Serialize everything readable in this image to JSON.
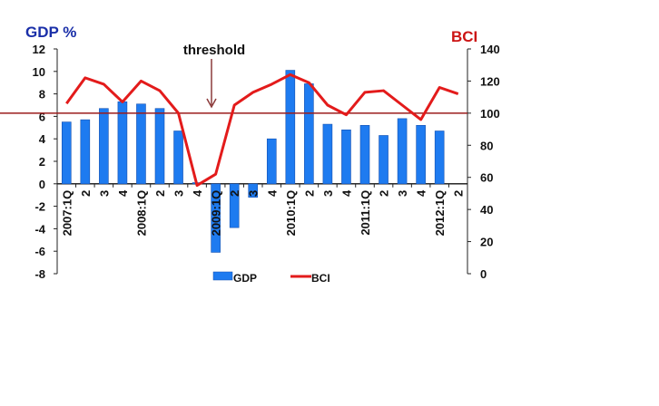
{
  "chart_data": {
    "type": "bar+line",
    "title": "",
    "left_axis": {
      "label": "GDP %",
      "range": [
        -8,
        12
      ],
      "ticks": [
        -8,
        -6,
        -4,
        -2,
        0,
        2,
        4,
        6,
        8,
        10,
        12
      ]
    },
    "right_axis": {
      "label": "BCI",
      "range": [
        0,
        140
      ],
      "ticks": [
        0,
        20,
        40,
        60,
        80,
        100,
        120,
        140
      ]
    },
    "categories": [
      "2007:1Q",
      "2",
      "3",
      "4",
      "2008:1Q",
      "2",
      "3",
      "4",
      "2009:1Q",
      "2",
      "3",
      "4",
      "2010:1Q",
      "2",
      "3",
      "4",
      "2011:1Q",
      "2",
      "3",
      "4",
      "2012:1Q",
      "2"
    ],
    "series": [
      {
        "name": "GDP",
        "type": "bar",
        "axis": "left",
        "color": "#1e7bf0",
        "values": [
          5.5,
          5.7,
          6.7,
          7.3,
          7.1,
          6.7,
          4.7,
          0.1,
          -6.1,
          -3.9,
          -1.2,
          4.0,
          10.1,
          8.9,
          5.3,
          4.8,
          5.2,
          4.3,
          5.8,
          5.2,
          4.7,
          null
        ]
      },
      {
        "name": "BCI",
        "type": "line",
        "axis": "right",
        "color": "#e31b1b",
        "values": [
          106,
          122,
          118,
          107,
          120,
          114,
          100,
          55,
          62,
          105,
          113,
          118,
          124,
          119,
          105,
          99,
          113,
          114,
          105,
          96,
          116,
          112
        ]
      }
    ],
    "threshold": {
      "label": "threshold",
      "value": 100,
      "axis": "right",
      "color": "#9b1c1c"
    },
    "legend": {
      "placement": "bottom",
      "entries": [
        "GDP",
        "BCI"
      ]
    },
    "grid": false
  }
}
